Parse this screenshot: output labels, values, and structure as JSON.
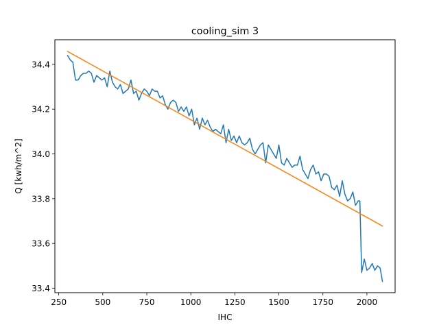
{
  "chart_data": {
    "type": "line",
    "title": "cooling_sim 3",
    "xlabel": "IHC",
    "ylabel": "Q [kwh/m^2]",
    "xlim": [
      228,
      2160
    ],
    "ylim": [
      33.38,
      34.51
    ],
    "xticks": [
      250,
      500,
      750,
      1000,
      1250,
      1500,
      1750,
      2000
    ],
    "xtick_labels": [
      "250",
      "500",
      "750",
      "1000",
      "1250",
      "1500",
      "1750",
      "2000"
    ],
    "yticks": [
      33.4,
      33.6,
      33.8,
      34.0,
      34.2,
      34.4
    ],
    "ytick_labels": [
      "33.4",
      "33.6",
      "33.8",
      "34.0",
      "34.2",
      "34.4"
    ],
    "grid": false,
    "legend": "none",
    "series": [
      {
        "color": "#1f77b4",
        "x": [
          300,
          315,
          330,
          345,
          360,
          375,
          390,
          405,
          420,
          435,
          450,
          465,
          480,
          495,
          510,
          525,
          540,
          555,
          570,
          585,
          600,
          615,
          630,
          645,
          660,
          675,
          690,
          705,
          720,
          735,
          750,
          765,
          780,
          795,
          810,
          825,
          840,
          855,
          870,
          885,
          900,
          915,
          930,
          945,
          960,
          975,
          990,
          1005,
          1020,
          1035,
          1050,
          1065,
          1080,
          1095,
          1110,
          1125,
          1140,
          1155,
          1170,
          1185,
          1200,
          1215,
          1230,
          1245,
          1260,
          1275,
          1290,
          1305,
          1320,
          1335,
          1350,
          1365,
          1380,
          1395,
          1410,
          1425,
          1440,
          1455,
          1470,
          1485,
          1500,
          1515,
          1530,
          1545,
          1560,
          1575,
          1590,
          1605,
          1620,
          1635,
          1650,
          1665,
          1680,
          1695,
          1710,
          1725,
          1740,
          1755,
          1770,
          1785,
          1800,
          1815,
          1830,
          1845,
          1860,
          1875,
          1890,
          1905,
          1920,
          1935,
          1950,
          1960,
          1970,
          1985,
          2000,
          2015,
          2030,
          2045,
          2060,
          2075,
          2088
        ],
        "y": [
          34.44,
          34.42,
          34.41,
          34.33,
          34.33,
          34.35,
          34.36,
          34.36,
          34.37,
          34.36,
          34.32,
          34.35,
          34.34,
          34.33,
          34.34,
          34.3,
          34.37,
          34.32,
          34.3,
          34.29,
          34.31,
          34.27,
          34.28,
          34.29,
          34.33,
          34.27,
          34.28,
          34.24,
          34.27,
          34.29,
          34.28,
          34.26,
          34.29,
          34.28,
          34.28,
          34.25,
          34.26,
          34.22,
          34.2,
          34.23,
          34.24,
          34.23,
          34.19,
          34.21,
          34.19,
          34.21,
          34.17,
          34.2,
          34.13,
          34.16,
          34.11,
          34.16,
          34.13,
          34.15,
          34.12,
          34.1,
          34.11,
          34.1,
          34.09,
          34.13,
          34.05,
          34.11,
          34.06,
          34.08,
          34.05,
          34.08,
          34.05,
          34.04,
          34.05,
          34.07,
          34.02,
          34.0,
          34.02,
          34.04,
          34.05,
          33.96,
          34.04,
          34.02,
          34.0,
          33.98,
          34.04,
          33.96,
          33.95,
          33.98,
          33.96,
          33.94,
          33.95,
          33.95,
          33.99,
          33.93,
          33.91,
          33.89,
          33.93,
          33.95,
          33.91,
          33.92,
          33.88,
          33.91,
          33.91,
          33.9,
          33.85,
          33.84,
          33.86,
          33.81,
          33.88,
          33.82,
          33.79,
          33.8,
          33.83,
          33.77,
          33.79,
          33.79,
          33.47,
          33.53,
          33.48,
          33.49,
          33.51,
          33.48,
          33.5,
          33.49,
          33.43
        ]
      },
      {
        "color": "#ff7f0e",
        "x": [
          300,
          2088
        ],
        "y": [
          34.458,
          33.678
        ]
      }
    ]
  }
}
